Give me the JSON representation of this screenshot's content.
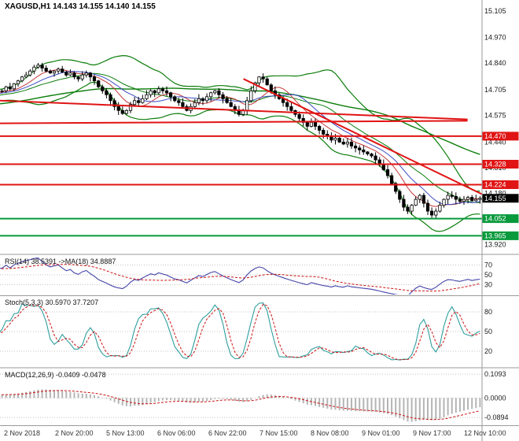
{
  "header": {
    "title": "XAGUSD,H1 14.143 14.155 14.140 14.155"
  },
  "colors": {
    "background": "#ffffff",
    "axis_text": "#1a1a1a",
    "time_text": "#333333",
    "divider": "#9a9a9a",
    "grid_dotted": "#c4c4c4",
    "candle_up_fill": "#ffffff",
    "candle_down_fill": "#000000",
    "candle_border": "#000000",
    "bollinger_green": "#0b7d0b",
    "ma_fast_red": "#c43b3b",
    "ma_mid_blue": "#3b4bc4",
    "level_red": "#e01414",
    "level_green": "#089a3c",
    "current_price_bg": "#000000",
    "rsi_line": "#4343a8",
    "rsi_ma": "#cc1111",
    "stoch_k": "#2f9e9e",
    "stoch_d": "#cc1111",
    "macd_hist": "#b4b4b4",
    "macd_signal": "#cc1111"
  },
  "axis": {
    "price_ticks": [
      "15.105",
      "14.970",
      "14.840",
      "14.705",
      "14.575",
      "14.440",
      "14.310",
      "14.180",
      "14.045",
      "13.920"
    ],
    "time_labels": [
      "2 Nov 2018",
      "2 Nov 20:00",
      "5 Nov 13:00",
      "6 Nov 06:00",
      "6 Nov 22:00",
      "7 Nov 15:00",
      "8 Nov 08:00",
      "9 Nov 01:00",
      "9 Nov 17:00",
      "12 Nov 10:00"
    ]
  },
  "chart_data": [
    {
      "type": "candlestick",
      "symbol": "XAGUSD",
      "timeframe": "H1",
      "last_quote": {
        "open": "14.143",
        "high": "14.155",
        "low": "14.140",
        "close": "14.155"
      },
      "y_range": [
        13.875,
        15.16
      ],
      "closes": [
        14.7,
        14.72,
        14.71,
        14.735,
        14.75,
        14.77,
        14.78,
        14.8,
        14.82,
        14.83,
        14.815,
        14.8,
        14.79,
        14.8,
        14.81,
        14.795,
        14.78,
        14.79,
        14.77,
        14.76,
        14.78,
        14.79,
        14.77,
        14.75,
        14.72,
        14.7,
        14.68,
        14.65,
        14.62,
        14.6,
        14.585,
        14.6,
        14.63,
        14.65,
        14.64,
        14.66,
        14.68,
        14.7,
        14.69,
        14.71,
        14.7,
        14.69,
        14.67,
        14.65,
        14.64,
        14.62,
        14.6,
        14.62,
        14.64,
        14.66,
        14.65,
        14.67,
        14.69,
        14.7,
        14.68,
        14.66,
        14.64,
        14.62,
        14.6,
        14.58,
        14.6,
        14.65,
        14.7,
        14.74,
        14.77,
        14.76,
        14.73,
        14.7,
        14.68,
        14.66,
        14.64,
        14.62,
        14.6,
        14.58,
        14.56,
        14.54,
        14.52,
        14.54,
        14.52,
        14.5,
        14.48,
        14.47,
        14.45,
        14.46,
        14.44,
        14.43,
        14.44,
        14.42,
        14.41,
        14.4,
        14.39,
        14.38,
        14.37,
        14.35,
        14.33,
        14.3,
        14.27,
        14.23,
        14.19,
        14.15,
        14.11,
        14.09,
        14.12,
        14.15,
        14.17,
        14.13,
        14.09,
        14.07,
        14.09,
        14.12,
        14.15,
        14.17,
        14.165,
        14.15,
        14.14,
        14.15,
        14.16,
        14.143,
        14.15,
        14.155
      ],
      "levels": [
        {
          "price": "14.470",
          "kind": "resistance"
        },
        {
          "price": "14.328",
          "kind": "resistance"
        },
        {
          "price": "14.224",
          "kind": "resistance"
        },
        {
          "price": "14.155",
          "kind": "current"
        },
        {
          "price": "14.052",
          "kind": "support"
        },
        {
          "price": "13.965",
          "kind": "support"
        }
      ],
      "trendlines": [
        {
          "x1": 0.0,
          "p1": 14.65,
          "x2": 0.97,
          "p2": 14.555
        },
        {
          "x1": 0.0,
          "p1": 14.535,
          "x2": 0.97,
          "p2": 14.548
        },
        {
          "x1": 0.505,
          "p1": 14.76,
          "x2": 1.005,
          "p2": 14.17
        }
      ],
      "overlays": {
        "bollinger_period": 20,
        "bollinger_deviation": 2,
        "sma_slow": 60,
        "sma_fast": 8,
        "sma_mid": 13
      }
    },
    {
      "type": "line",
      "name": "RSI",
      "label": "RSI(14) 38.5391 ->MA(18) 34.8887",
      "period": 14,
      "ma_period": 18,
      "value": 38.5391,
      "ma_value": 34.8887,
      "levels": [
        70,
        50,
        30
      ],
      "y_range": [
        10,
        90
      ]
    },
    {
      "type": "line",
      "name": "Stochastic",
      "label": "Stoch(5,3,3) 30.5970 37.7207",
      "k_period": 5,
      "slowing": 3,
      "d_period": 3,
      "value_k": 30.597,
      "value_d": 37.7207,
      "levels": [
        80,
        50,
        20
      ],
      "y_range": [
        -4,
        104
      ]
    },
    {
      "type": "macd",
      "name": "MACD",
      "label": "MACD(12,26,9) -0.0409 -0.0478",
      "fast": 12,
      "slow": 26,
      "signal": 9,
      "value": -0.0409,
      "signal_value": -0.0478,
      "ticks": [
        "0.1093",
        "0.0000",
        "-0.0894"
      ],
      "y_range": [
        -0.125,
        0.135
      ]
    }
  ]
}
